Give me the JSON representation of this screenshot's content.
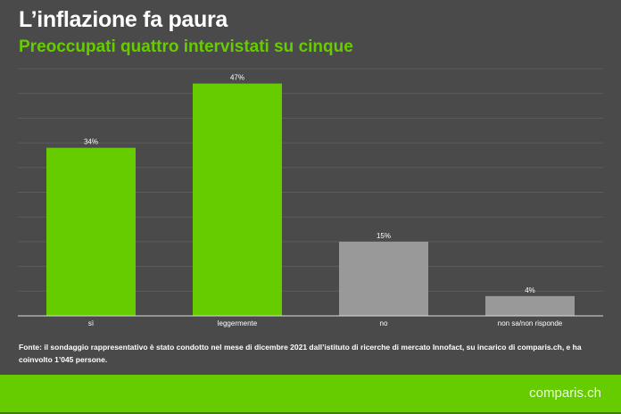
{
  "chart_data": {
    "type": "bar",
    "title": "L’inflazione fa paura",
    "subtitle": "Preoccupati quattro intervistati su cinque",
    "categories": [
      "sì",
      "leggermente",
      "no",
      "non sa/non risponde"
    ],
    "values": [
      34,
      47,
      15,
      4
    ],
    "data_labels": [
      "34%",
      "47%",
      "15%",
      "4%"
    ],
    "colors": [
      "#66cc00",
      "#66cc00",
      "#999999",
      "#999999"
    ],
    "ylim": [
      0,
      50
    ],
    "grid": true
  },
  "source": "Fonte: il sondaggio rappresentativo è stato condotto nel mese di dicembre 2021 dall’istituto di ricerche di mercato Innofact, su incarico di comparis.ch, e ha coinvolto 1’045 persone.",
  "logo": "comparis.ch"
}
